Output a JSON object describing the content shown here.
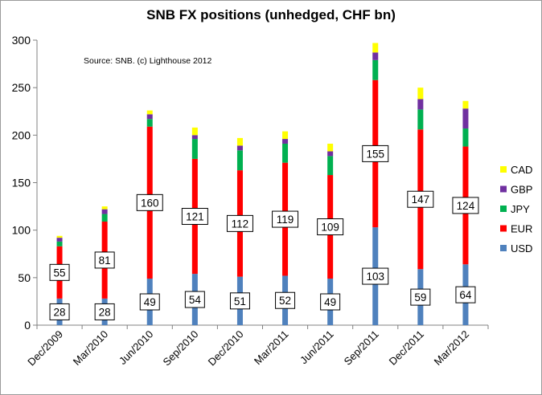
{
  "chart_data": {
    "type": "bar",
    "stacked": true,
    "title": "SNB FX positions (unhedged, CHF bn)",
    "annotation": "Source: SNB. (c) Lighthouse 2012",
    "xlabel": "",
    "ylabel": "",
    "ylim": [
      0,
      300
    ],
    "yticks": [
      0,
      50,
      100,
      150,
      200,
      250,
      300
    ],
    "grid": false,
    "legend_position": "right",
    "categories": [
      "Dec/2009",
      "Mar/2010",
      "Jun/2010",
      "Sep/2010",
      "Dec/2010",
      "Mar/2011",
      "Jun/2011",
      "Sep/2011",
      "Dec/2011",
      "Mar/2012"
    ],
    "series": [
      {
        "name": "USD",
        "color": "#4f81bd",
        "values": [
          28,
          28,
          49,
          54,
          51,
          52,
          49,
          103,
          59,
          64
        ],
        "labeled": true
      },
      {
        "name": "EUR",
        "color": "#ff0000",
        "values": [
          55,
          81,
          160,
          121,
          112,
          119,
          109,
          155,
          147,
          124
        ],
        "labeled": true
      },
      {
        "name": "JPY",
        "color": "#00b050",
        "values": [
          5,
          8,
          8,
          21,
          21,
          20,
          20,
          21,
          21,
          19
        ],
        "labeled": false
      },
      {
        "name": "GBP",
        "color": "#7030a0",
        "values": [
          4,
          5,
          5,
          4,
          5,
          5,
          5,
          8,
          11,
          21
        ],
        "labeled": false
      },
      {
        "name": "CAD",
        "color": "#ffff00",
        "values": [
          2,
          3,
          4,
          8,
          8,
          8,
          8,
          10,
          12,
          8
        ],
        "labeled": false
      }
    ]
  }
}
